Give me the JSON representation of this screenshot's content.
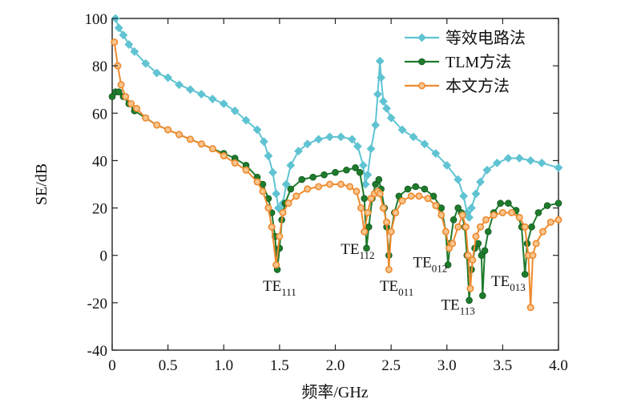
{
  "chart_data": {
    "type": "line",
    "xlabel": "频率/GHz",
    "ylabel": "SE/dB",
    "xlim": [
      0,
      4.0
    ],
    "ylim": [
      -40,
      100
    ],
    "x_ticks": [
      "0",
      "0.5",
      "1.0",
      "1.5",
      "2.0",
      "2.5",
      "3.0",
      "3.5",
      "4.0"
    ],
    "y_ticks": [
      "-40",
      "-20",
      "0",
      "20",
      "40",
      "60",
      "80",
      "100"
    ],
    "x_tick_values": [
      0,
      0.5,
      1.0,
      1.5,
      2.0,
      2.5,
      3.0,
      3.5,
      4.0
    ],
    "y_tick_values": [
      -40,
      -20,
      0,
      20,
      40,
      60,
      80,
      100
    ],
    "legend_position": "top-right",
    "series": [
      {
        "name": "等效电路法",
        "color": "#5fc3d2",
        "marker": "diamond",
        "points": [
          [
            0.03,
            100
          ],
          [
            0.06,
            96
          ],
          [
            0.1,
            93
          ],
          [
            0.15,
            89
          ],
          [
            0.2,
            86
          ],
          [
            0.3,
            81
          ],
          [
            0.4,
            77
          ],
          [
            0.5,
            75
          ],
          [
            0.6,
            72
          ],
          [
            0.7,
            70
          ],
          [
            0.8,
            68
          ],
          [
            0.9,
            66
          ],
          [
            1.0,
            64
          ],
          [
            1.1,
            61
          ],
          [
            1.2,
            57
          ],
          [
            1.3,
            53
          ],
          [
            1.36,
            48
          ],
          [
            1.4,
            42
          ],
          [
            1.44,
            35
          ],
          [
            1.47,
            26
          ],
          [
            1.49,
            20
          ],
          [
            1.51,
            19
          ],
          [
            1.53,
            22
          ],
          [
            1.56,
            30
          ],
          [
            1.6,
            38
          ],
          [
            1.67,
            44
          ],
          [
            1.75,
            47
          ],
          [
            1.85,
            49
          ],
          [
            1.95,
            50
          ],
          [
            2.05,
            50
          ],
          [
            2.15,
            49
          ],
          [
            2.2,
            46
          ],
          [
            2.25,
            38
          ],
          [
            2.27,
            30
          ],
          [
            2.29,
            34
          ],
          [
            2.32,
            45
          ],
          [
            2.36,
            55
          ],
          [
            2.38,
            68
          ],
          [
            2.4,
            82
          ],
          [
            2.41,
            75
          ],
          [
            2.43,
            65
          ],
          [
            2.46,
            62
          ],
          [
            2.5,
            58
          ],
          [
            2.6,
            53
          ],
          [
            2.7,
            50
          ],
          [
            2.8,
            47
          ],
          [
            2.9,
            43
          ],
          [
            3.0,
            38
          ],
          [
            3.1,
            32
          ],
          [
            3.15,
            25
          ],
          [
            3.18,
            18
          ],
          [
            3.2,
            16
          ],
          [
            3.22,
            20
          ],
          [
            3.26,
            26
          ],
          [
            3.3,
            31
          ],
          [
            3.36,
            36
          ],
          [
            3.45,
            39
          ],
          [
            3.55,
            41
          ],
          [
            3.65,
            41
          ],
          [
            3.75,
            40
          ],
          [
            3.85,
            39
          ],
          [
            4.0,
            37
          ]
        ]
      },
      {
        "name": "TLM方法",
        "color": "#1e7b2c",
        "marker": "circle",
        "points": [
          [
            0.0,
            67
          ],
          [
            0.03,
            69
          ],
          [
            0.06,
            69
          ],
          [
            0.1,
            67
          ],
          [
            0.15,
            64
          ],
          [
            0.2,
            61
          ],
          [
            0.3,
            58
          ],
          [
            0.4,
            55
          ],
          [
            0.5,
            53
          ],
          [
            0.6,
            51
          ],
          [
            0.7,
            49
          ],
          [
            0.8,
            47
          ],
          [
            0.9,
            45
          ],
          [
            1.0,
            43
          ],
          [
            1.1,
            41
          ],
          [
            1.2,
            38
          ],
          [
            1.3,
            33
          ],
          [
            1.35,
            30
          ],
          [
            1.4,
            24
          ],
          [
            1.43,
            18
          ],
          [
            1.46,
            8
          ],
          [
            1.48,
            -6
          ],
          [
            1.5,
            3
          ],
          [
            1.52,
            15
          ],
          [
            1.55,
            22
          ],
          [
            1.6,
            28
          ],
          [
            1.7,
            32
          ],
          [
            1.8,
            33
          ],
          [
            1.9,
            34
          ],
          [
            2.0,
            35
          ],
          [
            2.1,
            36
          ],
          [
            2.18,
            37
          ],
          [
            2.22,
            35
          ],
          [
            2.26,
            24
          ],
          [
            2.28,
            3
          ],
          [
            2.3,
            12
          ],
          [
            2.33,
            24
          ],
          [
            2.36,
            30
          ],
          [
            2.39,
            32
          ],
          [
            2.41,
            28
          ],
          [
            2.44,
            20
          ],
          [
            2.46,
            12
          ],
          [
            2.48,
            0
          ],
          [
            2.5,
            10
          ],
          [
            2.53,
            18
          ],
          [
            2.57,
            25
          ],
          [
            2.65,
            28
          ],
          [
            2.72,
            29
          ],
          [
            2.8,
            28
          ],
          [
            2.88,
            25
          ],
          [
            2.95,
            20
          ],
          [
            2.99,
            10
          ],
          [
            3.01,
            -4
          ],
          [
            3.03,
            5
          ],
          [
            3.06,
            15
          ],
          [
            3.1,
            20
          ],
          [
            3.13,
            18
          ],
          [
            3.16,
            12
          ],
          [
            3.18,
            0
          ],
          [
            3.2,
            -19
          ],
          [
            3.22,
            -6
          ],
          [
            3.25,
            3
          ],
          [
            3.28,
            5
          ],
          [
            3.31,
            0
          ],
          [
            3.32,
            -17
          ],
          [
            3.34,
            2
          ],
          [
            3.37,
            10
          ],
          [
            3.42,
            18
          ],
          [
            3.48,
            22
          ],
          [
            3.55,
            22
          ],
          [
            3.62,
            19
          ],
          [
            3.67,
            12
          ],
          [
            3.7,
            -8
          ],
          [
            3.72,
            5
          ],
          [
            3.76,
            12
          ],
          [
            3.82,
            18
          ],
          [
            3.9,
            21
          ],
          [
            4.0,
            22
          ]
        ]
      },
      {
        "name": "本文方法",
        "color": "#ef8a2e",
        "marker": "open-circle",
        "points": [
          [
            0.02,
            90
          ],
          [
            0.05,
            80
          ],
          [
            0.08,
            72
          ],
          [
            0.12,
            67
          ],
          [
            0.17,
            64
          ],
          [
            0.22,
            62
          ],
          [
            0.3,
            58
          ],
          [
            0.4,
            55
          ],
          [
            0.5,
            53
          ],
          [
            0.6,
            51
          ],
          [
            0.7,
            49
          ],
          [
            0.8,
            47
          ],
          [
            0.9,
            45
          ],
          [
            1.0,
            42
          ],
          [
            1.1,
            39
          ],
          [
            1.2,
            36
          ],
          [
            1.3,
            31
          ],
          [
            1.35,
            27
          ],
          [
            1.4,
            20
          ],
          [
            1.43,
            12
          ],
          [
            1.47,
            -4
          ],
          [
            1.5,
            8
          ],
          [
            1.53,
            18
          ],
          [
            1.58,
            22
          ],
          [
            1.65,
            25
          ],
          [
            1.75,
            28
          ],
          [
            1.85,
            29
          ],
          [
            1.95,
            30
          ],
          [
            2.05,
            30
          ],
          [
            2.13,
            29
          ],
          [
            2.19,
            27
          ],
          [
            2.23,
            20
          ],
          [
            2.26,
            10
          ],
          [
            2.29,
            18
          ],
          [
            2.32,
            24
          ],
          [
            2.35,
            26
          ],
          [
            2.38,
            27
          ],
          [
            2.4,
            26
          ],
          [
            2.43,
            20
          ],
          [
            2.46,
            14
          ],
          [
            2.48,
            -6
          ],
          [
            2.5,
            10
          ],
          [
            2.54,
            18
          ],
          [
            2.6,
            23
          ],
          [
            2.68,
            25
          ],
          [
            2.75,
            25
          ],
          [
            2.83,
            24
          ],
          [
            2.9,
            21
          ],
          [
            2.95,
            17
          ],
          [
            2.99,
            10
          ],
          [
            3.02,
            3
          ],
          [
            3.05,
            5
          ],
          [
            3.1,
            12
          ],
          [
            3.14,
            17
          ],
          [
            3.17,
            12
          ],
          [
            3.19,
            0
          ],
          [
            3.21,
            -14
          ],
          [
            3.23,
            -2
          ],
          [
            3.26,
            8
          ],
          [
            3.3,
            12
          ],
          [
            3.35,
            15
          ],
          [
            3.42,
            17
          ],
          [
            3.5,
            18
          ],
          [
            3.58,
            18
          ],
          [
            3.65,
            16
          ],
          [
            3.7,
            12
          ],
          [
            3.73,
            0
          ],
          [
            3.75,
            -22
          ],
          [
            3.77,
            0
          ],
          [
            3.8,
            5
          ],
          [
            3.86,
            10
          ],
          [
            3.93,
            14
          ],
          [
            4.0,
            15
          ]
        ]
      }
    ],
    "annotations": [
      {
        "base": "TE",
        "sub": "111",
        "x": 1.5,
        "y": -15
      },
      {
        "base": "TE",
        "sub": "112",
        "x": 2.2,
        "y": 0.5
      },
      {
        "base": "TE",
        "sub": "011",
        "x": 2.55,
        "y": -15
      },
      {
        "base": "TE",
        "sub": "012",
        "x": 2.85,
        "y": -5
      },
      {
        "base": "TE",
        "sub": "113",
        "x": 3.1,
        "y": -23
      },
      {
        "base": "TE",
        "sub": "013",
        "x": 3.55,
        "y": -13
      }
    ]
  }
}
